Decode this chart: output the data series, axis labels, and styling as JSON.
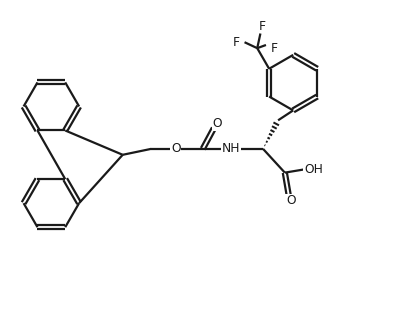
{
  "background_color": "#ffffff",
  "line_color": "#1a1a1a",
  "line_width": 1.6,
  "figsize": [
    4.0,
    3.1
  ],
  "dpi": 100,
  "xlim": [
    0,
    10
  ],
  "ylim": [
    0,
    7.75
  ]
}
